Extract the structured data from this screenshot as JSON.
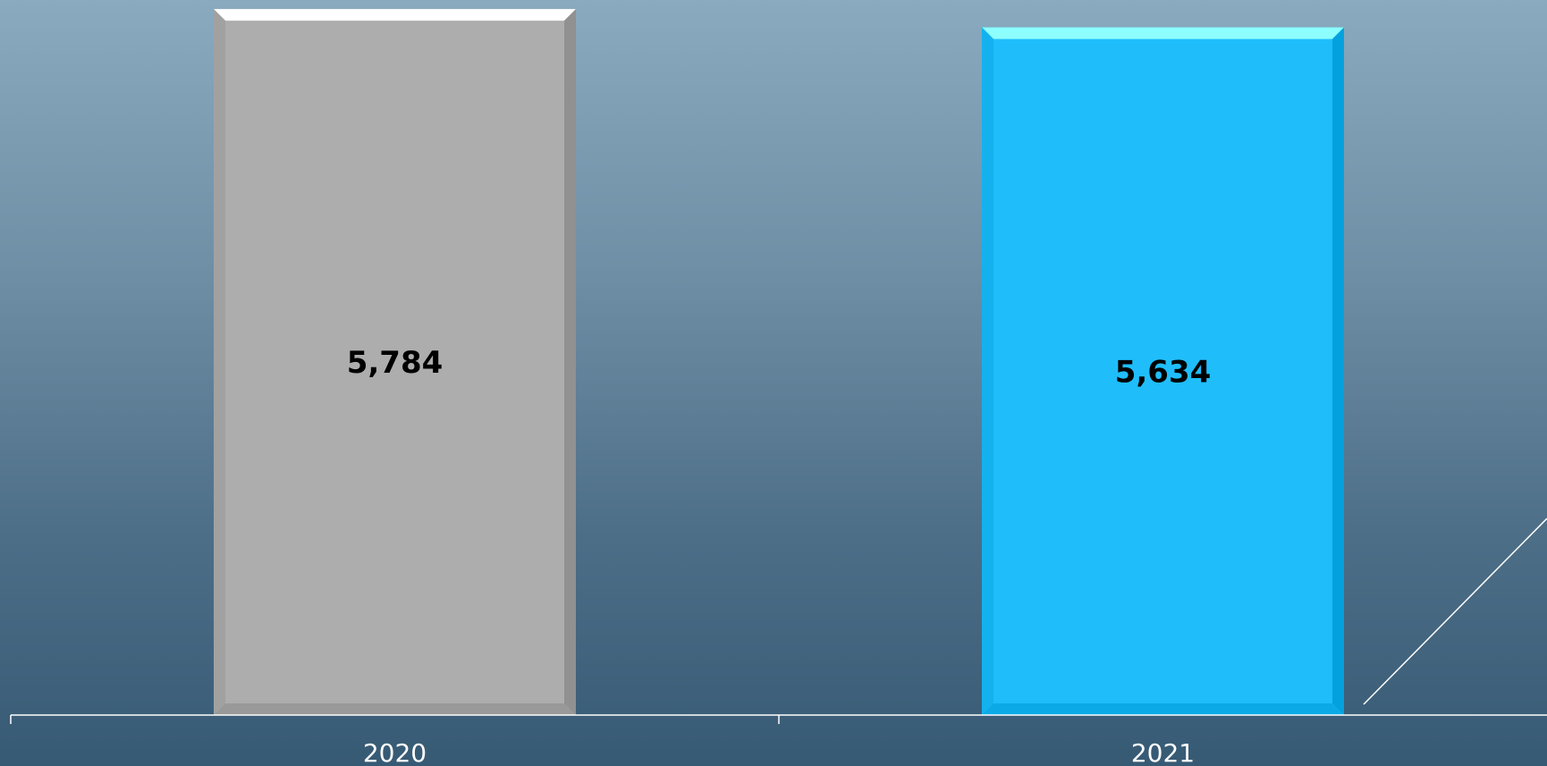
{
  "chart_data": {
    "type": "bar",
    "categories": [
      "2020",
      "2021"
    ],
    "values": [
      5784,
      5634
    ],
    "value_labels": [
      "5,784",
      "5,634"
    ],
    "ylim": [
      0,
      5800
    ],
    "grid": false,
    "legend": "none",
    "title": "",
    "xlabel": "",
    "ylabel": ""
  },
  "colors": {
    "bar_2020": "#adadad",
    "bar_2021": "#1fbefb",
    "axis": "#ffffff",
    "label_text": "#000000",
    "category_text": "#ffffff"
  }
}
